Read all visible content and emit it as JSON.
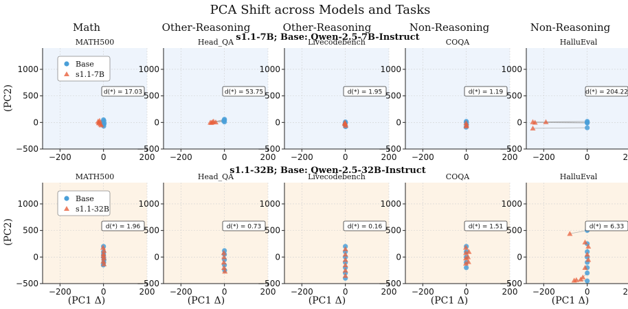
{
  "figure_title": "PCA Shift across Models and Tasks",
  "column_categories": [
    "Math",
    "Other-Reasoning",
    "Other-Reasoning",
    "Non-Reasoning",
    "Non-Reasoning"
  ],
  "rows": [
    {
      "title": "s1.1-7B; Base: Qwen-2.5-7B-Instruct",
      "legend_base": "Base",
      "legend_model": "s1.1-7B",
      "bg": "#eef4fc"
    },
    {
      "title": "s1.1-32B; Base: Qwen-2.5-32B-Instruct",
      "legend_base": "Base",
      "legend_model": "s1.1-32B",
      "bg": "#fdf3e6"
    }
  ],
  "ylabel": "(PC2)",
  "xlabel": "(PC1 Δ)",
  "colors": {
    "base": "#4a9fd8",
    "model": "#e8603c",
    "line": "#999999"
  },
  "chart_data": {
    "type": "scatter",
    "title": "PCA Shift across Models and Tasks",
    "xlabel": "(PC1 Δ)",
    "ylabel": "(PC2)",
    "xlim": [
      -280,
      200
    ],
    "ylim": [
      -500,
      1400
    ],
    "xticks": [
      -200,
      0,
      200
    ],
    "yticks": [
      -500,
      0,
      500,
      1000
    ],
    "panels": [
      {
        "row": 0,
        "col": 0,
        "dataset": "MATH500",
        "d_label": "d(*) = 17.03",
        "base": [
          [
            0,
            -40
          ],
          [
            2,
            30
          ],
          [
            -3,
            10
          ],
          [
            1,
            -70
          ],
          [
            0,
            50
          ],
          [
            3,
            -20
          ]
        ],
        "model": [
          [
            -20,
            0
          ],
          [
            -15,
            -30
          ],
          [
            -25,
            20
          ],
          [
            -10,
            -50
          ],
          [
            -18,
            35
          ],
          [
            -22,
            -10
          ]
        ]
      },
      {
        "row": 0,
        "col": 1,
        "dataset": "Head_QA",
        "d_label": "d(*) = 53.75",
        "base": [
          [
            0,
            40
          ],
          [
            0,
            60
          ],
          [
            0,
            10
          ],
          [
            -3,
            30
          ]
        ],
        "model": [
          [
            -55,
            10
          ],
          [
            -60,
            -5
          ],
          [
            -50,
            20
          ],
          [
            -65,
            0
          ],
          [
            -40,
            5
          ]
        ]
      },
      {
        "row": 0,
        "col": 2,
        "dataset": "Livecodebench",
        "d_label": "d(*) = 1.95",
        "base": [
          [
            0,
            -10
          ],
          [
            0,
            10
          ],
          [
            -2,
            -40
          ],
          [
            1,
            -80
          ]
        ],
        "model": [
          [
            -2,
            0
          ],
          [
            0,
            -30
          ],
          [
            1,
            -60
          ],
          [
            -3,
            -20
          ]
        ]
      },
      {
        "row": 0,
        "col": 3,
        "dataset": "COQA",
        "d_label": "d(*) = 1.19",
        "base": [
          [
            0,
            0
          ],
          [
            1,
            -40
          ],
          [
            -1,
            -90
          ],
          [
            0,
            20
          ]
        ],
        "model": [
          [
            -1,
            -10
          ],
          [
            1,
            -50
          ],
          [
            0,
            -70
          ]
        ]
      },
      {
        "row": 0,
        "col": 4,
        "dataset": "HalluEval",
        "d_label": "d(*) = 204.22",
        "base": [
          [
            0,
            0
          ],
          [
            0,
            -100
          ],
          [
            0,
            20
          ],
          [
            0,
            -10
          ]
        ],
        "model": [
          [
            -250,
            10
          ],
          [
            -250,
            -110
          ],
          [
            -190,
            10
          ],
          [
            -240,
            0
          ]
        ]
      },
      {
        "row": 1,
        "col": 0,
        "dataset": "MATH500",
        "d_label": "d(*) = 1.96",
        "base": [
          [
            0,
            200
          ],
          [
            0,
            100
          ],
          [
            0,
            0
          ],
          [
            1,
            -100
          ],
          [
            -1,
            -150
          ],
          [
            0,
            50
          ],
          [
            2,
            -50
          ]
        ],
        "model": [
          [
            -2,
            180
          ],
          [
            2,
            120
          ],
          [
            0,
            60
          ],
          [
            1,
            -20
          ],
          [
            -1,
            -80
          ],
          [
            2,
            -130
          ],
          [
            0,
            20
          ]
        ]
      },
      {
        "row": 1,
        "col": 1,
        "dataset": "Head_QA",
        "d_label": "d(*) = 0.73",
        "base": [
          [
            0,
            120
          ],
          [
            0,
            50
          ],
          [
            0,
            -50
          ],
          [
            0,
            -150
          ],
          [
            1,
            -250
          ]
        ],
        "model": [
          [
            -3,
            80
          ],
          [
            -2,
            0
          ],
          [
            -3,
            -100
          ],
          [
            -2,
            -200
          ],
          [
            2,
            -270
          ]
        ]
      },
      {
        "row": 1,
        "col": 2,
        "dataset": "Livecodebench",
        "d_label": "d(*) = 0.16",
        "base": [
          [
            0,
            200
          ],
          [
            0,
            100
          ],
          [
            0,
            0
          ],
          [
            0,
            -100
          ],
          [
            0,
            -200
          ],
          [
            0,
            -300
          ],
          [
            0,
            -400
          ]
        ],
        "model": [
          [
            0,
            150
          ],
          [
            0,
            50
          ],
          [
            0,
            -50
          ],
          [
            0,
            -150
          ],
          [
            0,
            -250
          ],
          [
            0,
            -350
          ]
        ]
      },
      {
        "row": 1,
        "col": 3,
        "dataset": "COQA",
        "d_label": "d(*) = 1.51",
        "base": [
          [
            0,
            200
          ],
          [
            0,
            100
          ],
          [
            0,
            0
          ],
          [
            0,
            -100
          ],
          [
            0,
            -200
          ]
        ],
        "model": [
          [
            -2,
            180
          ],
          [
            -2,
            80
          ],
          [
            -2,
            -20
          ],
          [
            -2,
            -120
          ],
          [
            10,
            -90
          ],
          [
            12,
            100
          ],
          [
            8,
            0
          ]
        ]
      },
      {
        "row": 1,
        "col": 4,
        "dataset": "HalluEval",
        "d_label": "d(*) = 6.33",
        "base": [
          [
            0,
            500
          ],
          [
            0,
            250
          ],
          [
            0,
            100
          ],
          [
            0,
            0
          ],
          [
            0,
            -100
          ],
          [
            0,
            -200
          ],
          [
            0,
            -300
          ],
          [
            0,
            -450
          ]
        ],
        "model": [
          [
            -80,
            440
          ],
          [
            -10,
            280
          ],
          [
            5,
            200
          ],
          [
            0,
            50
          ],
          [
            5,
            -50
          ],
          [
            -10,
            -200
          ],
          [
            -30,
            -420
          ],
          [
            -50,
            -430
          ],
          [
            -20,
            -380
          ],
          [
            -60,
            -440
          ]
        ]
      }
    ]
  }
}
